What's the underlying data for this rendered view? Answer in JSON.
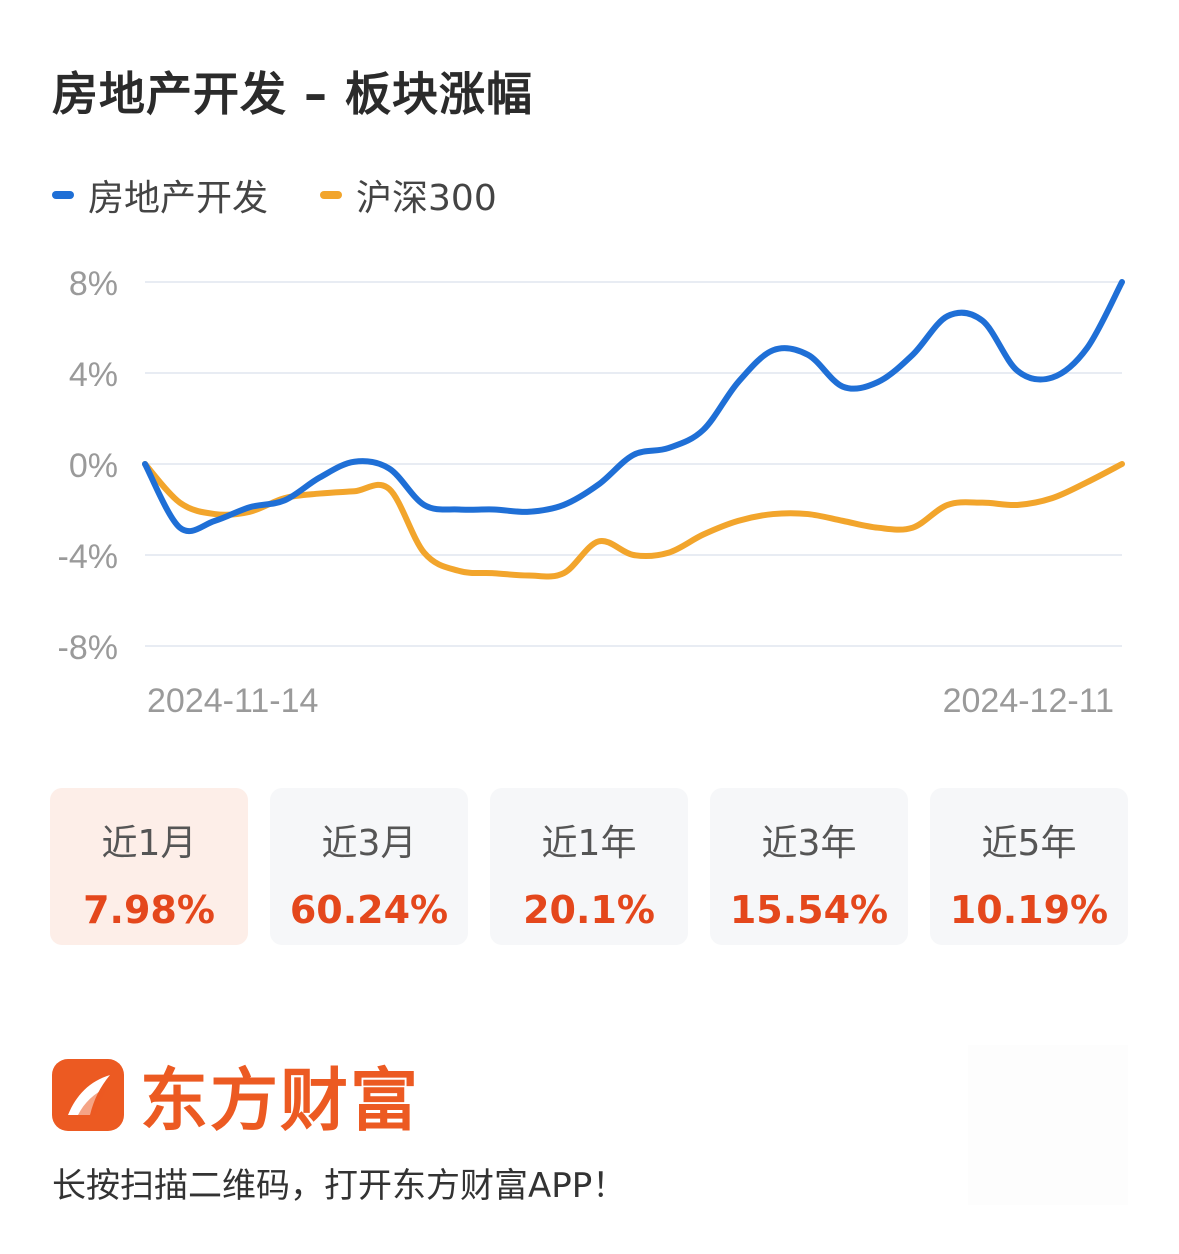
{
  "title": "房地产开发 – 板块涨幅",
  "colors": {
    "sector": "#1f6fd6",
    "index": "#f2a52c",
    "accent": "#e4471c",
    "grid": "#e8ecf3",
    "axis_text": "#9a9a9a"
  },
  "chart_data": {
    "type": "line",
    "title": "房地产开发 – 板块涨幅",
    "xlabel": "",
    "ylabel": "",
    "ylim": [
      -8,
      8
    ],
    "yticks": [
      8,
      4,
      0,
      -4,
      -8
    ],
    "ytick_labels": [
      "8%",
      "4%",
      "0%",
      "-4%",
      "-8%"
    ],
    "x_start_label": "2024-11-14",
    "x_end_label": "2024-12-11",
    "grid": true,
    "legend_position": "top-left",
    "series": [
      {
        "name": "房地产开发",
        "color": "#1f6fd6",
        "values": [
          0,
          -2.8,
          -2.5,
          -1.9,
          -1.6,
          -0.6,
          0.1,
          -0.2,
          -1.8,
          -2.0,
          -2.0,
          -2.1,
          -1.8,
          -0.9,
          0.4,
          0.7,
          1.5,
          3.6,
          5.0,
          4.8,
          3.4,
          3.6,
          4.8,
          6.5,
          6.3,
          4.1,
          3.8,
          5.1,
          8.0
        ]
      },
      {
        "name": "沪深300",
        "color": "#f2a52c",
        "values": [
          0,
          -1.7,
          -2.2,
          -2.1,
          -1.5,
          -1.3,
          -1.2,
          -1.1,
          -3.9,
          -4.7,
          -4.8,
          -4.9,
          -4.8,
          -3.4,
          -4.0,
          -3.9,
          -3.1,
          -2.5,
          -2.2,
          -2.2,
          -2.5,
          -2.8,
          -2.8,
          -1.8,
          -1.7,
          -1.8,
          -1.5,
          -0.8,
          0.0
        ]
      }
    ]
  },
  "periods": [
    {
      "label": "近1月",
      "value": "7.98%",
      "active": true
    },
    {
      "label": "近3月",
      "value": "60.24%"
    },
    {
      "label": "近1年",
      "value": "20.1%"
    },
    {
      "label": "近3年",
      "value": "15.54%"
    },
    {
      "label": "近5年",
      "value": "10.19%"
    }
  ],
  "brand": {
    "name": "东方财富",
    "note": "长按扫描二维码，打开东方财富APP！"
  },
  "icons": {
    "logo": "east-money-logo-icon"
  }
}
